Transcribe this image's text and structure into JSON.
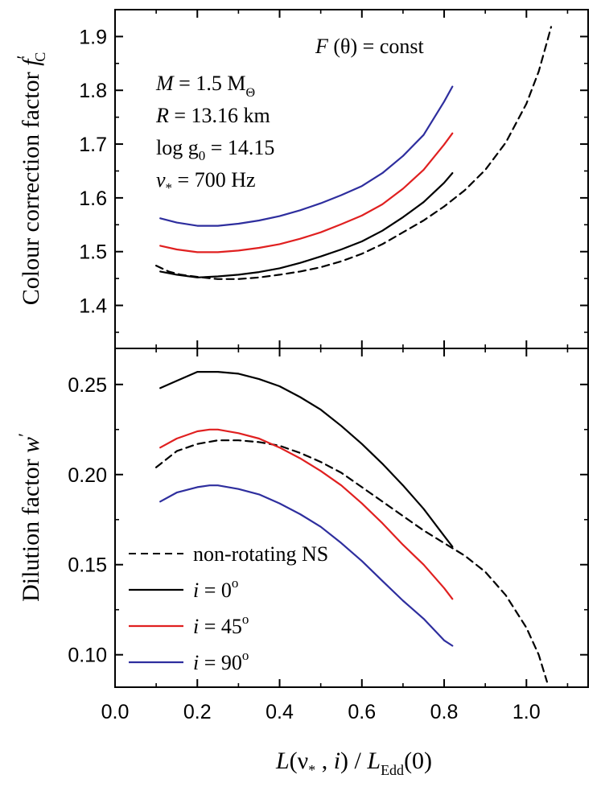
{
  "chart_data": [
    {
      "panel": "top",
      "type": "line",
      "ylabel": {
        "text": "Colour correction factor ",
        "var": "f",
        "sup": "′",
        "sub": "C"
      },
      "ylim": [
        1.32,
        1.95
      ],
      "xlim": [
        0.0,
        1.15
      ],
      "y_ticks": [
        1.4,
        1.5,
        1.6,
        1.7,
        1.8,
        1.9
      ],
      "y_tick_labels": [
        "1.4",
        "1.5",
        "1.6",
        "1.7",
        "1.8",
        "1.9"
      ],
      "annotations": {
        "condition": {
          "pre": "F",
          "post": " (θ) = const"
        },
        "mass": {
          "var": "M",
          "mid": " = 1.5 M",
          "sub": "Θ"
        },
        "radius": {
          "var": "R",
          "rest": " = 13.16 km"
        },
        "gravity": {
          "pre": "log g",
          "sub": "0",
          "post": " = 14.15"
        },
        "frequency": {
          "var": "ν",
          "sub": "*",
          "post": " = 700 Hz"
        }
      },
      "series": [
        {
          "name": "non-rotating NS",
          "color": "#000000",
          "dash": true,
          "points": [
            [
              0.1,
              1.474
            ],
            [
              0.13,
              1.463
            ],
            [
              0.16,
              1.457
            ],
            [
              0.2,
              1.453
            ],
            [
              0.25,
              1.449
            ],
            [
              0.3,
              1.449
            ],
            [
              0.35,
              1.452
            ],
            [
              0.4,
              1.457
            ],
            [
              0.45,
              1.463
            ],
            [
              0.5,
              1.471
            ],
            [
              0.55,
              1.482
            ],
            [
              0.6,
              1.496
            ],
            [
              0.65,
              1.514
            ],
            [
              0.7,
              1.536
            ],
            [
              0.75,
              1.558
            ],
            [
              0.8,
              1.584
            ],
            [
              0.85,
              1.614
            ],
            [
              0.9,
              1.652
            ],
            [
              0.95,
              1.703
            ],
            [
              1.0,
              1.775
            ],
            [
              1.03,
              1.835
            ],
            [
              1.05,
              1.89
            ],
            [
              1.06,
              1.918
            ]
          ]
        },
        {
          "name": "i = 0°",
          "color": "#000000",
          "dash": false,
          "points": [
            [
              0.11,
              1.463
            ],
            [
              0.15,
              1.457
            ],
            [
              0.2,
              1.452
            ],
            [
              0.25,
              1.454
            ],
            [
              0.3,
              1.457
            ],
            [
              0.35,
              1.462
            ],
            [
              0.4,
              1.469
            ],
            [
              0.45,
              1.479
            ],
            [
              0.5,
              1.491
            ],
            [
              0.55,
              1.504
            ],
            [
              0.6,
              1.519
            ],
            [
              0.65,
              1.539
            ],
            [
              0.7,
              1.564
            ],
            [
              0.75,
              1.592
            ],
            [
              0.8,
              1.628
            ],
            [
              0.82,
              1.646
            ]
          ]
        },
        {
          "name": "i = 45°",
          "color": "#e02020",
          "dash": false,
          "points": [
            [
              0.11,
              1.511
            ],
            [
              0.15,
              1.504
            ],
            [
              0.2,
              1.499
            ],
            [
              0.25,
              1.499
            ],
            [
              0.3,
              1.502
            ],
            [
              0.35,
              1.507
            ],
            [
              0.4,
              1.514
            ],
            [
              0.45,
              1.524
            ],
            [
              0.5,
              1.536
            ],
            [
              0.55,
              1.551
            ],
            [
              0.6,
              1.567
            ],
            [
              0.65,
              1.588
            ],
            [
              0.7,
              1.617
            ],
            [
              0.75,
              1.652
            ],
            [
              0.8,
              1.699
            ],
            [
              0.82,
              1.72
            ]
          ]
        },
        {
          "name": "i = 90°",
          "color": "#2e2e9e",
          "dash": false,
          "points": [
            [
              0.11,
              1.562
            ],
            [
              0.15,
              1.554
            ],
            [
              0.2,
              1.548
            ],
            [
              0.25,
              1.548
            ],
            [
              0.3,
              1.552
            ],
            [
              0.35,
              1.558
            ],
            [
              0.4,
              1.566
            ],
            [
              0.45,
              1.577
            ],
            [
              0.5,
              1.59
            ],
            [
              0.55,
              1.605
            ],
            [
              0.6,
              1.622
            ],
            [
              0.65,
              1.646
            ],
            [
              0.7,
              1.678
            ],
            [
              0.75,
              1.717
            ],
            [
              0.8,
              1.779
            ],
            [
              0.82,
              1.807
            ]
          ]
        }
      ]
    },
    {
      "panel": "bottom",
      "type": "line",
      "ylabel": {
        "text": "Dilution factor ",
        "var": "w",
        "sup": "′"
      },
      "xlabel": {
        "var1": "L",
        "mid": "(ν",
        "sub1": "*",
        "mid2": " , ",
        "var2": "i",
        "mid3": ") / ",
        "var3": "L",
        "sub2": "Edd",
        "post": "(0)"
      },
      "ylim": [
        0.082,
        0.27
      ],
      "xlim": [
        0.0,
        1.15
      ],
      "y_ticks": [
        0.1,
        0.15,
        0.2,
        0.25
      ],
      "y_tick_labels": [
        "0.10",
        "0.15",
        "0.20",
        "0.25"
      ],
      "x_ticks": [
        0.0,
        0.2,
        0.4,
        0.6,
        0.8,
        1.0
      ],
      "x_tick_labels": [
        "0.0",
        "0.2",
        "0.4",
        "0.6",
        "0.8",
        "1.0"
      ],
      "legend": {
        "position": "lower-left",
        "items": [
          {
            "label": "non-rotating NS",
            "kind": "dashed",
            "color": "#000000"
          },
          {
            "label_var": "i",
            "label_rest": " = 0",
            "label_sup": "o",
            "kind": "solid",
            "color": "#000000"
          },
          {
            "label_var": "i",
            "label_rest": " = 45",
            "label_sup": "o",
            "kind": "solid",
            "color": "#e02020"
          },
          {
            "label_var": "i",
            "label_rest": " = 90",
            "label_sup": "o",
            "kind": "solid",
            "color": "#2e2e9e"
          }
        ]
      },
      "series": [
        {
          "name": "non-rotating NS",
          "color": "#000000",
          "dash": true,
          "points": [
            [
              0.1,
              0.204
            ],
            [
              0.15,
              0.213
            ],
            [
              0.2,
              0.217
            ],
            [
              0.25,
              0.219
            ],
            [
              0.3,
              0.219
            ],
            [
              0.35,
              0.218
            ],
            [
              0.4,
              0.216
            ],
            [
              0.45,
              0.212
            ],
            [
              0.5,
              0.207
            ],
            [
              0.55,
              0.201
            ],
            [
              0.6,
              0.193
            ],
            [
              0.65,
              0.185
            ],
            [
              0.7,
              0.177
            ],
            [
              0.75,
              0.169
            ],
            [
              0.8,
              0.162
            ],
            [
              0.85,
              0.155
            ],
            [
              0.9,
              0.146
            ],
            [
              0.95,
              0.133
            ],
            [
              1.0,
              0.115
            ],
            [
              1.03,
              0.1
            ],
            [
              1.05,
              0.085
            ]
          ]
        },
        {
          "name": "i = 0°",
          "color": "#000000",
          "dash": false,
          "points": [
            [
              0.11,
              0.248
            ],
            [
              0.15,
              0.252
            ],
            [
              0.2,
              0.257
            ],
            [
              0.23,
              0.257
            ],
            [
              0.25,
              0.257
            ],
            [
              0.3,
              0.256
            ],
            [
              0.35,
              0.253
            ],
            [
              0.4,
              0.249
            ],
            [
              0.45,
              0.243
            ],
            [
              0.5,
              0.236
            ],
            [
              0.55,
              0.227
            ],
            [
              0.6,
              0.217
            ],
            [
              0.65,
              0.206
            ],
            [
              0.7,
              0.194
            ],
            [
              0.75,
              0.181
            ],
            [
              0.8,
              0.166
            ],
            [
              0.82,
              0.16
            ]
          ]
        },
        {
          "name": "i = 45°",
          "color": "#e02020",
          "dash": false,
          "points": [
            [
              0.11,
              0.215
            ],
            [
              0.15,
              0.22
            ],
            [
              0.2,
              0.224
            ],
            [
              0.23,
              0.225
            ],
            [
              0.25,
              0.225
            ],
            [
              0.3,
              0.223
            ],
            [
              0.35,
              0.22
            ],
            [
              0.4,
              0.215
            ],
            [
              0.45,
              0.209
            ],
            [
              0.5,
              0.202
            ],
            [
              0.55,
              0.194
            ],
            [
              0.6,
              0.184
            ],
            [
              0.65,
              0.173
            ],
            [
              0.7,
              0.161
            ],
            [
              0.75,
              0.15
            ],
            [
              0.8,
              0.137
            ],
            [
              0.82,
              0.131
            ]
          ]
        },
        {
          "name": "i = 90°",
          "color": "#2e2e9e",
          "dash": false,
          "points": [
            [
              0.11,
              0.185
            ],
            [
              0.15,
              0.19
            ],
            [
              0.2,
              0.193
            ],
            [
              0.23,
              0.194
            ],
            [
              0.25,
              0.194
            ],
            [
              0.3,
              0.192
            ],
            [
              0.35,
              0.189
            ],
            [
              0.4,
              0.184
            ],
            [
              0.45,
              0.178
            ],
            [
              0.5,
              0.171
            ],
            [
              0.55,
              0.162
            ],
            [
              0.6,
              0.152
            ],
            [
              0.65,
              0.141
            ],
            [
              0.7,
              0.13
            ],
            [
              0.75,
              0.12
            ],
            [
              0.8,
              0.108
            ],
            [
              0.82,
              0.105
            ]
          ]
        }
      ]
    }
  ]
}
